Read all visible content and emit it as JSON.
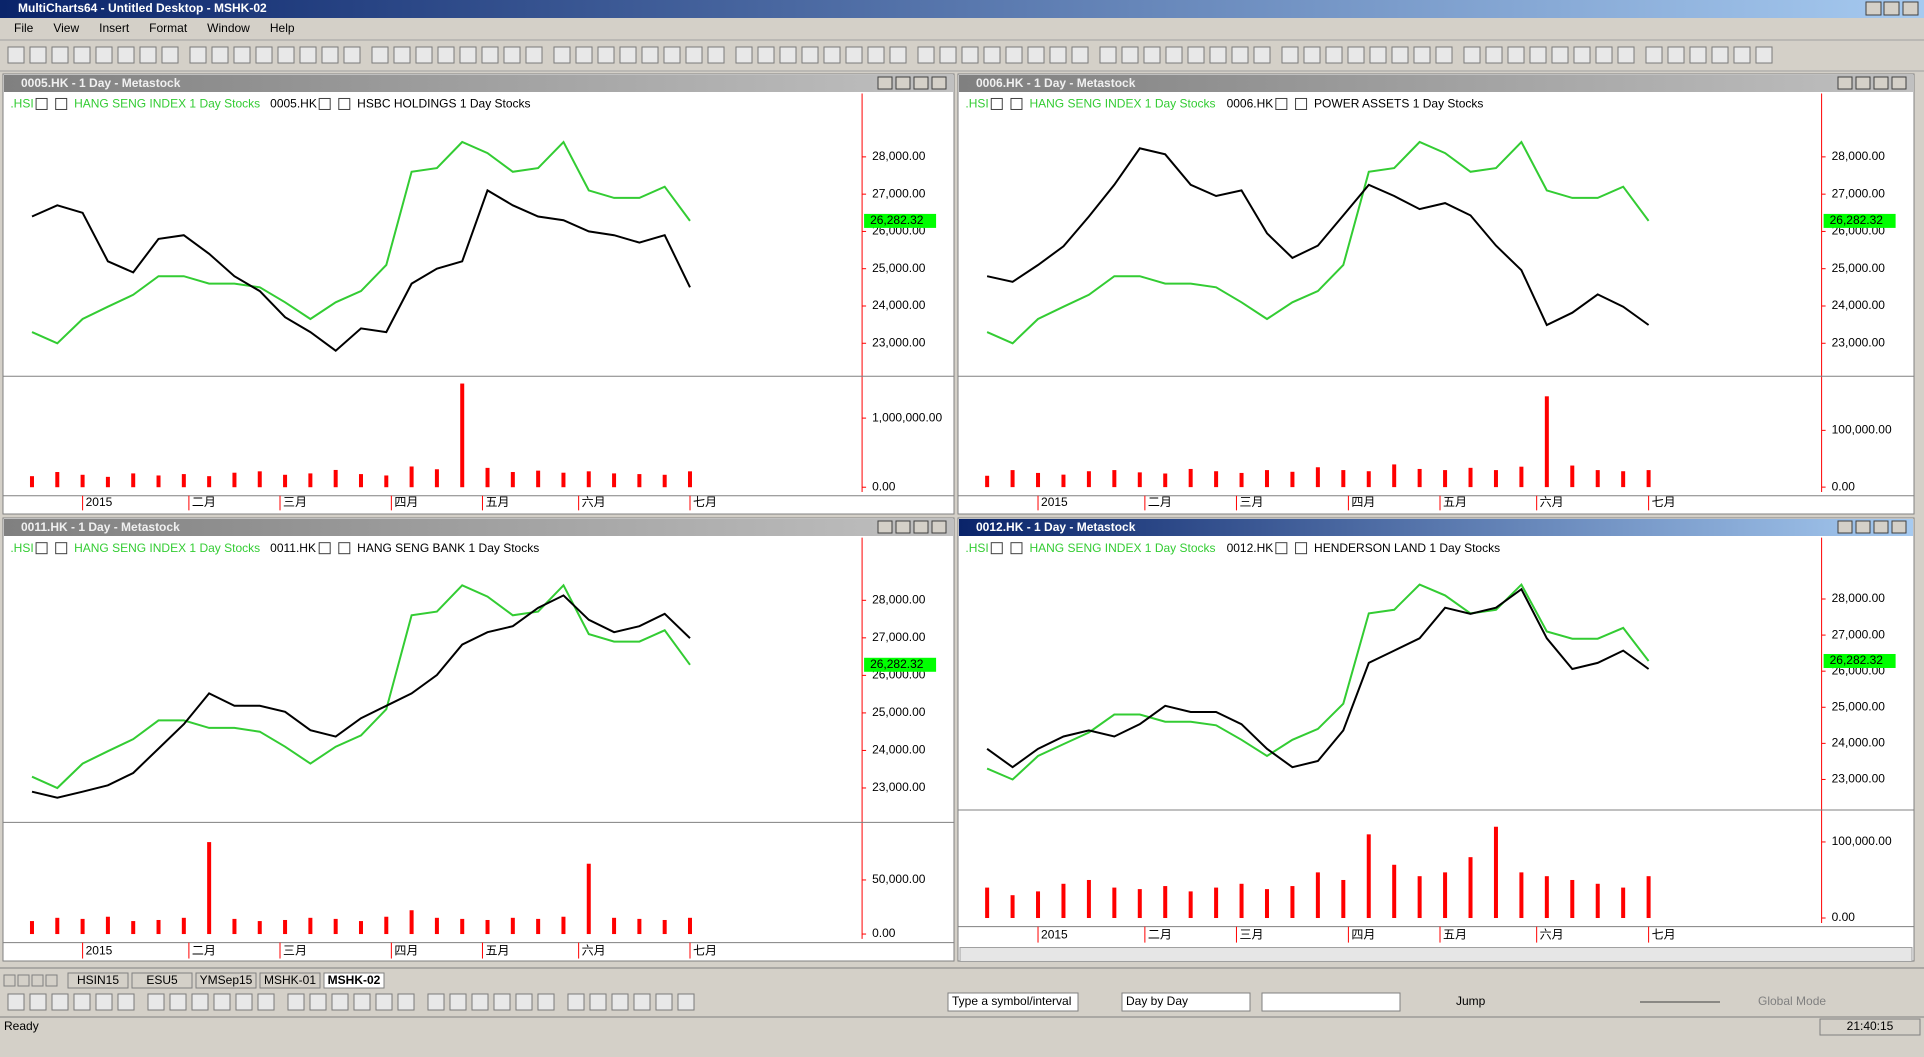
{
  "window": {
    "title": "MultiCharts64 - Untitled Desktop - MSHK-02",
    "menu": [
      "File",
      "View",
      "Insert",
      "Format",
      "Window",
      "Help"
    ],
    "tabs": [
      "HSIN15",
      "ESU5",
      "YMSep15",
      "MSHK-01",
      "MSHK-02"
    ],
    "toolbar": {
      "symbol_box": "Type a symbol/interval",
      "interval_box": "Day by Day",
      "jump": "Jump",
      "global_mode": "Global Mode"
    },
    "status": {
      "left": "Ready",
      "time": "21:40:15"
    }
  },
  "chart_data": [
    {
      "type": "price_volume",
      "title": "0005.HK - 1 Day - Metastock",
      "x": [
        -10,
        -5,
        0,
        5,
        10,
        15,
        20,
        25,
        30,
        35,
        40,
        45,
        50,
        55,
        60,
        65,
        70,
        75,
        80,
        85,
        90,
        95,
        100,
        105,
        110,
        115,
        120
      ],
      "xlim": [
        -15,
        154
      ],
      "xticks": [
        {
          "value": 0,
          "label": "2015"
        },
        {
          "value": 21,
          "label": "二月"
        },
        {
          "value": 39,
          "label": "三月"
        },
        {
          "value": 61,
          "label": "四月"
        },
        {
          "value": 79,
          "label": "五月"
        },
        {
          "value": 98,
          "label": "六月"
        },
        {
          "value": 120,
          "label": "七月"
        }
      ],
      "ylim": [
        22180,
        29700
      ],
      "yticks": [
        {
          "value": 23000,
          "label": "23,000.00"
        },
        {
          "value": 24000,
          "label": "24,000.00"
        },
        {
          "value": 25000,
          "label": "25,000.00"
        },
        {
          "value": 26000,
          "label": "26,000.00"
        },
        {
          "value": 27000,
          "label": "27,000.00"
        },
        {
          "value": 28000,
          "label": "28,000.00"
        }
      ],
      "series": [
        {
          "symbol": "0005.HK",
          "name": "HSBC HOLDINGS  1 Day  Stocks",
          "color": "#000000",
          "values": [
            26400,
            26700,
            26500,
            25200,
            24900,
            25800,
            25900,
            25400,
            24800,
            24400,
            23700,
            23300,
            22800,
            23400,
            23300,
            24600,
            25000,
            25200,
            27100,
            26700,
            26400,
            26300,
            26000,
            25900,
            25700,
            25900,
            24500
          ]
        },
        {
          "symbol": ".HSI",
          "name": "HANG SENG INDEX  1 Day  Stocks",
          "color": "#33cc33",
          "values": [
            23300,
            23000,
            23650,
            23980,
            24300,
            24800,
            24800,
            24600,
            24600,
            24500,
            24100,
            23650,
            24100,
            24400,
            25100,
            27600,
            27700,
            28400,
            28100,
            27600,
            27700,
            28400,
            27100,
            26900,
            26900,
            27200,
            26282.32
          ],
          "value_labels": [
            null,
            null,
            null,
            null,
            null,
            null,
            null,
            null,
            null,
            null,
            null,
            null,
            null,
            null,
            null,
            null,
            null,
            null,
            null,
            null,
            null,
            null,
            null,
            null,
            null,
            null,
            "26,282.32"
          ]
        }
      ],
      "volume": {
        "color": "#ff0000",
        "values": [
          160000,
          220000,
          180000,
          150000,
          200000,
          170000,
          190000,
          160000,
          210000,
          230000,
          180000,
          200000,
          250000,
          190000,
          170000,
          300000,
          260000,
          1500000,
          280000,
          220000,
          240000,
          210000,
          230000,
          200000,
          190000,
          180000,
          230000
        ],
        "ylim": [
          -70000,
          1570000
        ],
        "yticks": [
          {
            "value": 0,
            "label": "0.00"
          },
          {
            "value": 1000000,
            "label": "1,000,000.00"
          }
        ]
      }
    },
    {
      "type": "price_volume",
      "title": "0006.HK - 1 Day - Metastock",
      "x": [
        -10,
        -5,
        0,
        5,
        10,
        15,
        20,
        25,
        30,
        35,
        40,
        45,
        50,
        55,
        60,
        65,
        70,
        75,
        80,
        85,
        90,
        95,
        100,
        105,
        110,
        115,
        120
      ],
      "xlim": [
        -15,
        154
      ],
      "xticks": [
        {
          "value": 0,
          "label": "2015"
        },
        {
          "value": 21,
          "label": "二月"
        },
        {
          "value": 39,
          "label": "三月"
        },
        {
          "value": 61,
          "label": "四月"
        },
        {
          "value": 79,
          "label": "五月"
        },
        {
          "value": 98,
          "label": "六月"
        },
        {
          "value": 120,
          "label": "七月"
        }
      ],
      "ylim": [
        22180,
        29700
      ],
      "yticks": [
        {
          "value": 23000,
          "label": "23,000.00"
        },
        {
          "value": 24000,
          "label": "24,000.00"
        },
        {
          "value": 25000,
          "label": "25,000.00"
        },
        {
          "value": 26000,
          "label": "26,000.00"
        },
        {
          "value": 27000,
          "label": "27,000.00"
        },
        {
          "value": 28000,
          "label": "28,000.00"
        }
      ],
      "series": [
        {
          "symbol": "0006.HK",
          "name": "POWER ASSETS  1 Day  Stocks",
          "color": "#000000",
          "values": [
            24800,
            24650,
            25100,
            25600,
            26400,
            27250,
            28230,
            28070,
            27250,
            26950,
            27100,
            25950,
            25290,
            25620,
            26430,
            27250,
            26950,
            26600,
            26760,
            26430,
            25620,
            24960,
            23490,
            23820,
            24310,
            23980,
            23490
          ]
        },
        {
          "symbol": ".HSI",
          "name": "HANG SENG INDEX  1 Day  Stocks",
          "color": "#33cc33",
          "values": [
            23300,
            23000,
            23650,
            23980,
            24300,
            24800,
            24800,
            24600,
            24600,
            24500,
            24100,
            23650,
            24100,
            24400,
            25100,
            27600,
            27700,
            28400,
            28100,
            27600,
            27700,
            28400,
            27100,
            26900,
            26900,
            27200,
            26282.32
          ],
          "value_labels": [
            null,
            null,
            null,
            null,
            null,
            null,
            null,
            null,
            null,
            null,
            null,
            null,
            null,
            null,
            null,
            null,
            null,
            null,
            null,
            null,
            null,
            null,
            null,
            null,
            null,
            null,
            "26,282.32"
          ]
        }
      ],
      "volume": {
        "color": "#ff0000",
        "values": [
          20000,
          30000,
          25000,
          22000,
          28000,
          30000,
          26000,
          24000,
          32000,
          28000,
          25000,
          30000,
          27000,
          35000,
          30000,
          28000,
          40000,
          32000,
          30000,
          34000,
          30000,
          36000,
          160000,
          38000,
          30000,
          28000,
          30000
        ],
        "ylim": [
          -8700,
          191000
        ],
        "yticks": [
          {
            "value": 0,
            "label": "0.00"
          },
          {
            "value": 100000,
            "label": "100,000.00"
          }
        ]
      }
    },
    {
      "type": "price_volume",
      "title": "0011.HK - 1 Day - Metastock",
      "x": [
        -10,
        -5,
        0,
        5,
        10,
        15,
        20,
        25,
        30,
        35,
        40,
        45,
        50,
        55,
        60,
        65,
        70,
        75,
        80,
        85,
        90,
        95,
        100,
        105,
        110,
        115,
        120
      ],
      "xlim": [
        -15,
        154
      ],
      "xticks": [
        {
          "value": 0,
          "label": "2015"
        },
        {
          "value": 21,
          "label": "二月"
        },
        {
          "value": 39,
          "label": "三月"
        },
        {
          "value": 61,
          "label": "四月"
        },
        {
          "value": 79,
          "label": "五月"
        },
        {
          "value": 98,
          "label": "六月"
        },
        {
          "value": 120,
          "label": "七月"
        }
      ],
      "ylim": [
        22150,
        29670
      ],
      "yticks": [
        {
          "value": 23000,
          "label": "23,000.00"
        },
        {
          "value": 24000,
          "label": "24,000.00"
        },
        {
          "value": 25000,
          "label": "25,000.00"
        },
        {
          "value": 26000,
          "label": "26,000.00"
        },
        {
          "value": 27000,
          "label": "27,000.00"
        },
        {
          "value": 28000,
          "label": "28,000.00"
        }
      ],
      "series": [
        {
          "symbol": "0011.HK",
          "name": "HANG SENG BANK  1 Day  Stocks",
          "color": "#000000",
          "values": [
            22900,
            22740,
            22900,
            23070,
            23400,
            24050,
            24700,
            25520,
            25190,
            25190,
            25030,
            24540,
            24370,
            24860,
            25190,
            25520,
            26010,
            26820,
            27150,
            27310,
            27800,
            28130,
            27480,
            27150,
            27310,
            27640,
            26990
          ]
        },
        {
          "symbol": ".HSI",
          "name": "HANG SENG INDEX  1 Day  Stocks",
          "color": "#33cc33",
          "values": [
            23300,
            23000,
            23650,
            23980,
            24300,
            24800,
            24800,
            24600,
            24600,
            24500,
            24100,
            23650,
            24100,
            24400,
            25100,
            27600,
            27700,
            28400,
            28100,
            27600,
            27700,
            28400,
            27100,
            26900,
            26900,
            27200,
            26282.32
          ],
          "value_labels": [
            null,
            null,
            null,
            null,
            null,
            null,
            null,
            null,
            null,
            null,
            null,
            null,
            null,
            null,
            null,
            null,
            null,
            null,
            null,
            null,
            null,
            null,
            null,
            null,
            null,
            null,
            "26,282.32"
          ]
        }
      ],
      "volume": {
        "color": "#ff0000",
        "values": [
          12000,
          15000,
          14000,
          16000,
          12000,
          13000,
          15000,
          85000,
          14000,
          12000,
          13000,
          15000,
          14000,
          12000,
          16000,
          22000,
          15000,
          14000,
          13000,
          15000,
          14000,
          16000,
          65000,
          15000,
          14000,
          13000,
          15000
        ],
        "ylim": [
          -4500,
          101000
        ],
        "yticks": [
          {
            "value": 0,
            "label": "0.00"
          },
          {
            "value": 50000,
            "label": "50,000.00"
          }
        ]
      }
    },
    {
      "type": "price_volume",
      "title": "0012.HK - 1 Day - Metastock",
      "x": [
        -10,
        -5,
        0,
        5,
        10,
        15,
        20,
        25,
        30,
        35,
        40,
        45,
        50,
        55,
        60,
        65,
        70,
        75,
        80,
        85,
        90,
        95,
        100,
        105,
        110,
        115,
        120
      ],
      "xlim": [
        -15,
        154
      ],
      "xticks": [
        {
          "value": 0,
          "label": "2015"
        },
        {
          "value": 21,
          "label": "二月"
        },
        {
          "value": 39,
          "label": "三月"
        },
        {
          "value": 61,
          "label": "四月"
        },
        {
          "value": 79,
          "label": "五月"
        },
        {
          "value": 98,
          "label": "六月"
        },
        {
          "value": 120,
          "label": "七月"
        }
      ],
      "ylim": [
        22220,
        29700
      ],
      "yticks": [
        {
          "value": 23000,
          "label": "23,000.00"
        },
        {
          "value": 24000,
          "label": "24,000.00"
        },
        {
          "value": 25000,
          "label": "25,000.00"
        },
        {
          "value": 26000,
          "label": "26,000.00"
        },
        {
          "value": 27000,
          "label": "27,000.00"
        },
        {
          "value": 28000,
          "label": "28,000.00"
        }
      ],
      "series": [
        {
          "symbol": "0012.HK",
          "name": "HENDERSON LAND  1 Day  Stocks",
          "color": "#000000",
          "values": [
            23850,
            23340,
            23850,
            24190,
            24360,
            24190,
            24530,
            25040,
            24870,
            24870,
            24530,
            23850,
            23340,
            23510,
            24360,
            26230,
            26570,
            26910,
            27760,
            27590,
            27760,
            28270,
            26910,
            26060,
            26230,
            26570,
            26060
          ]
        },
        {
          "symbol": ".HSI",
          "name": "HANG SENG INDEX  1 Day  Stocks",
          "color": "#33cc33",
          "values": [
            23300,
            23000,
            23650,
            23980,
            24300,
            24800,
            24800,
            24600,
            24600,
            24500,
            24100,
            23650,
            24100,
            24400,
            25100,
            27600,
            27700,
            28400,
            28100,
            27600,
            27700,
            28400,
            27100,
            26900,
            26900,
            27200,
            26282.32
          ],
          "value_labels": [
            null,
            null,
            null,
            null,
            null,
            null,
            null,
            null,
            null,
            null,
            null,
            null,
            null,
            null,
            null,
            null,
            null,
            null,
            null,
            null,
            null,
            null,
            null,
            null,
            null,
            null,
            "26,282.32"
          ]
        }
      ],
      "volume": {
        "color": "#ff0000",
        "values": [
          40000,
          30000,
          35000,
          45000,
          50000,
          40000,
          38000,
          42000,
          35000,
          40000,
          45000,
          38000,
          42000,
          60000,
          50000,
          110000,
          70000,
          55000,
          60000,
          80000,
          120000,
          60000,
          55000,
          50000,
          45000,
          40000,
          55000
        ],
        "ylim": [
          -6500,
          138700
        ],
        "yticks": [
          {
            "value": 0,
            "label": "0.00"
          },
          {
            "value": 100000,
            "label": "100,000.00"
          }
        ]
      }
    }
  ]
}
